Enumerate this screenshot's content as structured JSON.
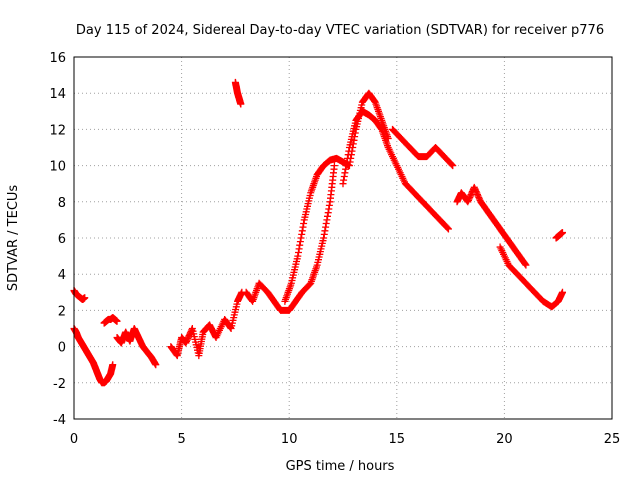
{
  "chart_data": {
    "type": "scatter",
    "title": "Day 115 of 2024, Sidereal Day-to-day VTEC variation (SDTVAR) for receiver p776",
    "xlabel": "GPS time / hours",
    "ylabel": "SDTVAR / TECUs",
    "xlim": [
      0,
      25
    ],
    "ylim": [
      -4,
      16
    ],
    "xticks": [
      "0",
      "5",
      "10",
      "15",
      "20",
      "25"
    ],
    "yticks": [
      "-4",
      "-2",
      "0",
      "2",
      "4",
      "6",
      "8",
      "10",
      "12",
      "14",
      "16"
    ],
    "grid": true,
    "marker": "+",
    "color": "#ff0000",
    "series": [
      {
        "name": "satellite-track-1",
        "x": [
          0.0,
          0.1,
          0.2,
          0.3,
          0.4,
          0.5
        ],
        "y": [
          3.1,
          2.9,
          2.8,
          2.7,
          2.6,
          2.7
        ]
      },
      {
        "name": "satellite-track-2",
        "x": [
          0.0,
          0.1,
          0.2,
          0.3,
          0.4,
          0.5,
          0.6,
          0.7,
          0.8,
          0.9,
          1.0,
          1.1,
          1.2,
          1.3,
          1.4,
          1.5,
          1.6,
          1.7,
          1.8
        ],
        "y": [
          1.0,
          0.8,
          0.5,
          0.3,
          0.1,
          -0.1,
          -0.3,
          -0.5,
          -0.7,
          -0.9,
          -1.2,
          -1.5,
          -1.8,
          -2.0,
          -2.0,
          -1.9,
          -1.7,
          -1.5,
          -1.0
        ]
      },
      {
        "name": "satellite-track-3",
        "x": [
          1.4,
          1.5,
          1.6,
          1.7,
          1.8,
          1.9,
          2.0
        ],
        "y": [
          1.3,
          1.4,
          1.5,
          1.5,
          1.6,
          1.5,
          1.4
        ]
      },
      {
        "name": "satellite-track-4",
        "x": [
          2.0,
          2.2,
          2.4,
          2.6,
          2.8,
          3.0,
          3.2,
          3.4,
          3.6,
          3.8
        ],
        "y": [
          0.5,
          0.2,
          0.8,
          0.3,
          1.0,
          0.5,
          0.0,
          -0.3,
          -0.6,
          -1.0
        ]
      },
      {
        "name": "satellite-track-5",
        "x": [
          4.5,
          4.8,
          5.0,
          5.2,
          5.5,
          5.8,
          6.0,
          6.3,
          6.6,
          7.0,
          7.3,
          7.6,
          7.8
        ],
        "y": [
          0.0,
          -0.5,
          0.5,
          0.2,
          1.0,
          -0.5,
          0.8,
          1.2,
          0.5,
          1.5,
          1.0,
          2.5,
          3.0
        ]
      },
      {
        "name": "satellite-track-6",
        "x": [
          7.5,
          7.55,
          7.6,
          7.65,
          7.7,
          7.75
        ],
        "y": [
          14.6,
          14.3,
          14.0,
          13.8,
          13.6,
          13.4
        ]
      },
      {
        "name": "satellite-track-7",
        "x": [
          8.0,
          8.3,
          8.6,
          9.0,
          9.3,
          9.6,
          10.0,
          10.3,
          10.6,
          11.0,
          11.3,
          11.6,
          11.9,
          12.1
        ],
        "y": [
          3.0,
          2.5,
          3.5,
          3.0,
          2.5,
          2.0,
          2.0,
          2.5,
          3.0,
          3.5,
          4.5,
          6.0,
          8.0,
          10.0
        ]
      },
      {
        "name": "satellite-track-8",
        "x": [
          9.8,
          10.1,
          10.4,
          10.7,
          11.0,
          11.3,
          11.6,
          11.9,
          12.2,
          12.5,
          12.8,
          13.1,
          13.4,
          13.7,
          14.0,
          14.3,
          14.6
        ],
        "y": [
          2.5,
          3.5,
          5.0,
          7.0,
          8.5,
          9.5,
          10.0,
          10.3,
          10.4,
          10.2,
          10.0,
          12.0,
          13.5,
          14.0,
          13.5,
          12.5,
          11.5
        ]
      },
      {
        "name": "satellite-track-9",
        "x": [
          12.5,
          12.8,
          13.1,
          13.4,
          13.7,
          14.0,
          14.3,
          14.6,
          15.0,
          15.4,
          15.8,
          16.2,
          16.6,
          17.0,
          17.4
        ],
        "y": [
          9.0,
          11.0,
          12.5,
          13.0,
          12.8,
          12.5,
          12.0,
          11.0,
          10.0,
          9.0,
          8.5,
          8.0,
          7.5,
          7.0,
          6.5
        ]
      },
      {
        "name": "satellite-track-10",
        "x": [
          14.8,
          15.2,
          15.6,
          16.0,
          16.4,
          16.8,
          17.2,
          17.6
        ],
        "y": [
          12.0,
          11.5,
          11.0,
          10.5,
          10.5,
          11.0,
          10.5,
          10.0
        ]
      },
      {
        "name": "satellite-track-11",
        "x": [
          17.8,
          18.0,
          18.3,
          18.6,
          18.9,
          19.2,
          19.5,
          19.8,
          20.1,
          20.4,
          20.7,
          21.0
        ],
        "y": [
          8.0,
          8.5,
          8.0,
          8.8,
          8.0,
          7.5,
          7.0,
          6.5,
          6.0,
          5.5,
          5.0,
          4.5
        ]
      },
      {
        "name": "satellite-track-12",
        "x": [
          19.8,
          20.2,
          20.6,
          21.0,
          21.4,
          21.8,
          22.2,
          22.5,
          22.7
        ],
        "y": [
          5.5,
          4.5,
          4.0,
          3.5,
          3.0,
          2.5,
          2.2,
          2.5,
          3.0
        ]
      },
      {
        "name": "satellite-track-13",
        "x": [
          22.4,
          22.5,
          22.6,
          22.7
        ],
        "y": [
          6.0,
          6.1,
          6.2,
          6.3
        ]
      }
    ]
  }
}
